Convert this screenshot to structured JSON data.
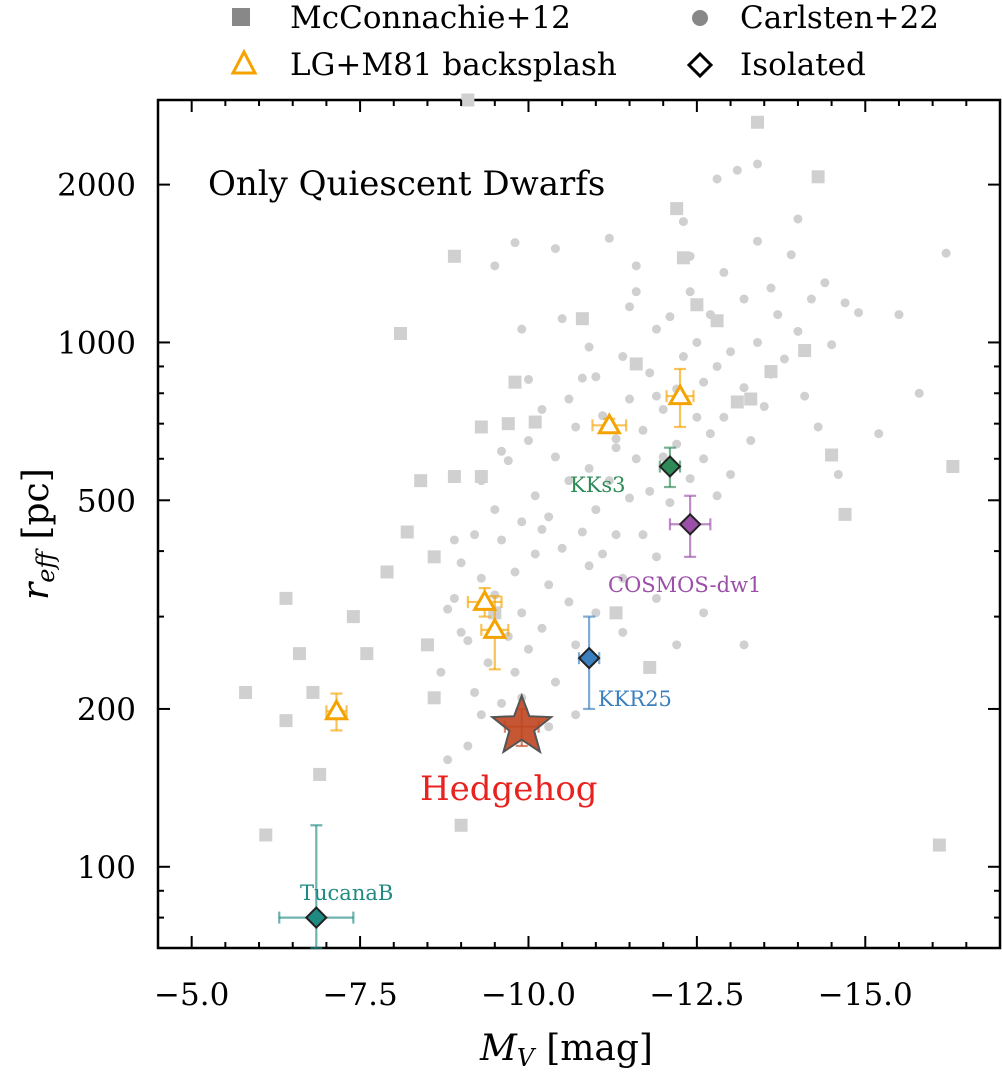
{
  "chart_data": {
    "type": "scatter",
    "title": "",
    "annotation": "Only Quiescent Dwarfs",
    "xlabel": "M_V [mag]",
    "xlabel_main": "M",
    "xlabel_sub": "V",
    "xlabel_unit": "[mag]",
    "ylabel": "r_eff [pc]",
    "ylabel_main": "r",
    "ylabel_sub": "eff",
    "ylabel_unit": "[pc]",
    "xlim": [
      -4.5,
      -17.0
    ],
    "ylim": [
      70,
      2900
    ],
    "yscale": "log",
    "x_ticks": [
      -5.0,
      -7.5,
      -10.0,
      -12.5,
      -15.0
    ],
    "x_tick_labels": [
      "−5.0",
      "−7.5",
      "−10.0",
      "−12.5",
      "−15.0"
    ],
    "y_ticks": [
      100,
      200,
      500,
      1000,
      2000
    ],
    "y_tick_labels": [
      "100",
      "200",
      "500",
      "1000",
      "2000"
    ],
    "legend": {
      "placement": "top, outside plot (2 columns)",
      "entries": [
        {
          "label": "McConnachie+12",
          "marker": "square",
          "color": "#888888"
        },
        {
          "label": "Carlsten+22",
          "marker": "circle",
          "color": "#888888"
        },
        {
          "label": "LG+M81 backsplash",
          "marker": "triangle-open",
          "color": "#f5a300"
        },
        {
          "label": "Isolated",
          "marker": "diamond-open",
          "color": "#000000"
        }
      ]
    },
    "series": [
      {
        "name": "McConnachie+12",
        "marker": "square",
        "color": "#d0d0d0",
        "points": [
          [
            -5.8,
            215
          ],
          [
            -6.1,
            115
          ],
          [
            -6.4,
            190
          ],
          [
            -6.4,
            325
          ],
          [
            -6.6,
            255
          ],
          [
            -6.8,
            215
          ],
          [
            -6.9,
            150
          ],
          [
            -7.4,
            300
          ],
          [
            -7.6,
            255
          ],
          [
            -7.9,
            365
          ],
          [
            -8.2,
            435
          ],
          [
            -8.4,
            545
          ],
          [
            -8.1,
            1040
          ],
          [
            -8.6,
            390
          ],
          [
            -8.6,
            210
          ],
          [
            -8.5,
            265
          ],
          [
            -8.9,
            555
          ],
          [
            -8.9,
            1460
          ],
          [
            -9.0,
            120
          ],
          [
            -9.1,
            2900
          ],
          [
            -9.3,
            555
          ],
          [
            -9.3,
            690
          ],
          [
            -9.5,
            305
          ],
          [
            -9.8,
            840
          ],
          [
            -9.7,
            700
          ],
          [
            -10.1,
            705
          ],
          [
            -10.8,
            1110
          ],
          [
            -11.3,
            305
          ],
          [
            -11.6,
            910
          ],
          [
            -11.8,
            240
          ],
          [
            -12.2,
            1800
          ],
          [
            -12.3,
            1450
          ],
          [
            -12.5,
            1180
          ],
          [
            -12.8,
            1100
          ],
          [
            -13.1,
            770
          ],
          [
            -13.3,
            780
          ],
          [
            -13.4,
            2630
          ],
          [
            -13.6,
            880
          ],
          [
            -14.1,
            965
          ],
          [
            -14.3,
            2070
          ],
          [
            -14.5,
            610
          ],
          [
            -14.7,
            470
          ],
          [
            -16.1,
            110
          ],
          [
            -16.3,
            580
          ]
        ]
      },
      {
        "name": "Carlsten+22",
        "marker": "circle",
        "color": "#d0d0d0",
        "points": [
          [
            -8.7,
            235
          ],
          [
            -8.9,
            325
          ],
          [
            -9.0,
            380
          ],
          [
            -9.1,
            270
          ],
          [
            -9.2,
            430
          ],
          [
            -9.2,
            215
          ],
          [
            -9.3,
            545
          ],
          [
            -9.3,
            355
          ],
          [
            -9.4,
            245
          ],
          [
            -9.5,
            480
          ],
          [
            -9.5,
            330
          ],
          [
            -9.6,
            205
          ],
          [
            -9.6,
            420
          ],
          [
            -9.7,
            275
          ],
          [
            -9.7,
            595
          ],
          [
            -9.8,
            365
          ],
          [
            -9.8,
            235
          ],
          [
            -9.9,
            455
          ],
          [
            -9.9,
            305
          ],
          [
            -10.0,
            650
          ],
          [
            -10.0,
            260
          ],
          [
            -10.1,
            395
          ],
          [
            -10.1,
            510
          ],
          [
            -10.2,
            285
          ],
          [
            -10.2,
            745
          ],
          [
            -10.3,
            345
          ],
          [
            -10.3,
            465
          ],
          [
            -10.4,
            225
          ],
          [
            -10.4,
            605
          ],
          [
            -10.5,
            405
          ],
          [
            -10.5,
            1110
          ],
          [
            -10.6,
            320
          ],
          [
            -10.6,
            545
          ],
          [
            -10.7,
            690
          ],
          [
            -10.7,
            265
          ],
          [
            -10.8,
            435
          ],
          [
            -10.8,
            855
          ],
          [
            -10.9,
            375
          ],
          [
            -10.9,
            575
          ],
          [
            -11.0,
            480
          ],
          [
            -11.0,
            305
          ],
          [
            -11.1,
            725
          ],
          [
            -11.1,
            395
          ],
          [
            -11.2,
            1580
          ],
          [
            -11.2,
            545
          ],
          [
            -11.3,
            430
          ],
          [
            -11.3,
            655
          ],
          [
            -11.4,
            940
          ],
          [
            -11.4,
            355
          ],
          [
            -11.5,
            505
          ],
          [
            -11.5,
            780
          ],
          [
            -11.6,
            1250
          ],
          [
            -11.6,
            600
          ],
          [
            -11.7,
            430
          ],
          [
            -11.7,
            680
          ],
          [
            -11.8,
            875
          ],
          [
            -11.8,
            520
          ],
          [
            -11.9,
            1060
          ],
          [
            -11.9,
            390
          ],
          [
            -12.0,
            745
          ],
          [
            -12.0,
            605
          ],
          [
            -12.1,
            1120
          ],
          [
            -12.1,
            495
          ],
          [
            -12.2,
            815
          ],
          [
            -12.2,
            640
          ],
          [
            -12.3,
            1700
          ],
          [
            -12.3,
            940
          ],
          [
            -12.4,
            550
          ],
          [
            -12.4,
            1250
          ],
          [
            -12.5,
            720
          ],
          [
            -12.5,
            1000
          ],
          [
            -12.6,
            600
          ],
          [
            -12.6,
            840
          ],
          [
            -12.7,
            1130
          ],
          [
            -12.7,
            670
          ],
          [
            -12.8,
            900
          ],
          [
            -12.8,
            510
          ],
          [
            -12.9,
            1360
          ],
          [
            -12.9,
            720
          ],
          [
            -13.0,
            960
          ],
          [
            -13.0,
            560
          ],
          [
            -13.1,
            2130
          ],
          [
            -13.2,
            820
          ],
          [
            -13.2,
            1210
          ],
          [
            -13.3,
            650
          ],
          [
            -13.4,
            1000
          ],
          [
            -13.4,
            1560
          ],
          [
            -13.5,
            755
          ],
          [
            -13.6,
            870
          ],
          [
            -13.6,
            1270
          ],
          [
            -13.7,
            1130
          ],
          [
            -13.8,
            930
          ],
          [
            -13.9,
            1470
          ],
          [
            -14.0,
            1050
          ],
          [
            -14.1,
            790
          ],
          [
            -14.2,
            1210
          ],
          [
            -14.3,
            690
          ],
          [
            -14.4,
            1300
          ],
          [
            -14.5,
            990
          ],
          [
            -14.6,
            560
          ],
          [
            -14.7,
            1190
          ],
          [
            -14.9,
            1140
          ],
          [
            -15.2,
            670
          ],
          [
            -15.5,
            1130
          ],
          [
            -15.8,
            800
          ],
          [
            -16.2,
            1480
          ],
          [
            -9.5,
            1400
          ],
          [
            -9.9,
            1060
          ],
          [
            -10.4,
            1510
          ],
          [
            -10.9,
            980
          ],
          [
            -11.5,
            1170
          ],
          [
            -12.4,
            1460
          ],
          [
            -12.8,
            2050
          ],
          [
            -13.4,
            2190
          ],
          [
            -14.0,
            1720
          ],
          [
            -13.2,
            265
          ],
          [
            -12.6,
            305
          ],
          [
            -12.2,
            265
          ],
          [
            -11.9,
            325
          ],
          [
            -11.4,
            280
          ],
          [
            -10.7,
            195
          ],
          [
            -10.3,
            185
          ],
          [
            -9.9,
            210
          ],
          [
            -9.3,
            195
          ],
          [
            -9.0,
            280
          ],
          [
            -8.8,
            160
          ],
          [
            -9.1,
            170
          ],
          [
            -9.6,
            620
          ],
          [
            -10.0,
            850
          ],
          [
            -10.6,
            780
          ],
          [
            -11.0,
            860
          ],
          [
            -11.6,
            1400
          ],
          [
            -9.8,
            1550
          ],
          [
            -8.9,
            420
          ],
          [
            -8.8,
            310
          ],
          [
            -10.2,
            440
          ],
          [
            -11.3,
            630
          ],
          [
            -11.9,
            790
          ]
        ]
      },
      {
        "name": "LG+M81 backsplash",
        "marker": "triangle-open",
        "color": "#f5a300",
        "points": [
          {
            "x": -7.15,
            "y": 198,
            "xerr": 0.15,
            "yerr": [
              16,
              16
            ]
          },
          {
            "x": -9.35,
            "y": 320,
            "xerr": 0.25,
            "yerr": [
              20,
              20
            ]
          },
          {
            "x": -9.5,
            "y": 283,
            "xerr": 0.2,
            "yerr": [
              45,
              45
            ]
          },
          {
            "x": -11.2,
            "y": 695,
            "xerr": 0.25,
            "yerr": [
              20,
              20
            ]
          },
          {
            "x": -12.25,
            "y": 790,
            "xerr": 0.2,
            "yerr": [
              100,
              100
            ]
          }
        ]
      },
      {
        "name": "Isolated",
        "marker": "diamond",
        "points": [
          {
            "label": "TucanaB",
            "x": -6.85,
            "y": 80,
            "xerr": 0.55,
            "yerr": [
              10,
              40
            ],
            "color": "#1f8a82"
          },
          {
            "label": "KKR25",
            "x": -10.9,
            "y": 250,
            "xerr": 0.15,
            "yerr": [
              50,
              50
            ],
            "color": "#3c7fbf"
          },
          {
            "label": "KKs3",
            "x": -12.1,
            "y": 580,
            "xerr": 0.15,
            "yerr": [
              50,
              50
            ],
            "color": "#2e8b57"
          },
          {
            "label": "COSMOS-dw1",
            "x": -12.4,
            "y": 450,
            "xerr": 0.3,
            "yerr": [
              60,
              60
            ],
            "color": "#9b4fa8"
          }
        ]
      },
      {
        "name": "Hedgehog",
        "marker": "star",
        "color": "#c0451f",
        "label": "Hedgehog",
        "label_color": "#e8231f",
        "points": [
          {
            "x": -9.9,
            "y": 185,
            "xerr": 0.25,
            "yerr": [
              15,
              15
            ]
          }
        ]
      }
    ]
  }
}
